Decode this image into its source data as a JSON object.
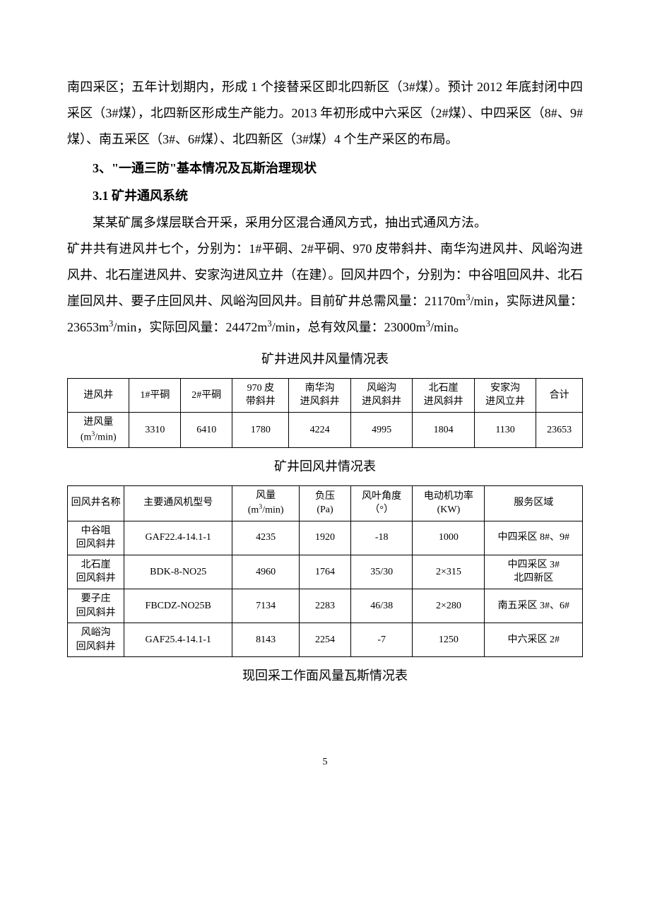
{
  "paragraphs": {
    "p1": "南四采区；五年计划期内，形成 1 个接替采区即北四新区（3#煤）。预计 2012 年底封闭中四采区（3#煤），北四新区形成生产能力。2013 年初形成中六采区（2#煤）、中四采区（8#、9#煤）、南五采区（3#、6#煤）、北四新区（3#煤）4 个生产采区的布局。",
    "h3": "3、\"一通三防\"基本情况及瓦斯治理现状",
    "h31": "3.1 矿井通风系统",
    "p2a": "某某矿属多煤层联合开采，采用分区混合通风方式，抽出式通风方法。",
    "p2b_pre": "矿井共有进风井七个，分别为：1#平硐、2#平硐、970 皮带斜井、南华沟进风井、风峪沟进风井、北石崖进风井、安家沟进风立井（在建）。回风井四个，分别为：中谷咀回风井、北石崖回风井、要子庄回风井、风峪沟回风井。目前矿井总需风量：21170m",
    "p2b_mid1": "/min，实际进风量：23653m",
    "p2b_mid2": "/min，实际回风量：24472m",
    "p2b_mid3": "/min，总有效风量：23000m",
    "p2b_end": "/min。"
  },
  "table1": {
    "caption": "矿井进风井风量情况表",
    "headers": [
      "进风井",
      "1#平硐",
      "2#平硐",
      "970 皮\n带斜井",
      "南华沟\n进风斜井",
      "风峪沟\n进风斜井",
      "北石崖\n进风斜井",
      "安家沟\n进风立井",
      "合计"
    ],
    "row_label_pre": "进风量\n(m",
    "row_label_post": "/min)",
    "values": [
      "3310",
      "6410",
      "1780",
      "4224",
      "4995",
      "1804",
      "1130",
      "23653"
    ]
  },
  "table2": {
    "caption": "矿井回风井情况表",
    "headers": {
      "c1": "回风井名称",
      "c2": "主要通风机型号",
      "c3_pre": "风量\n(m",
      "c3_post": "/min)",
      "c4": "负压\n(Pa)",
      "c5": "风叶角度\n（°）",
      "c6": "电动机功率\n(KW)",
      "c7": "服务区域"
    },
    "rows": [
      {
        "c1": "中谷咀\n回风斜井",
        "c2": "GAF22.4-14.1-1",
        "c3": "4235",
        "c4": "1920",
        "c5": "-18",
        "c6": "1000",
        "c7": "中四采区 8#、9#"
      },
      {
        "c1": "北石崖\n回风斜井",
        "c2": "BDK-8-NO25",
        "c3": "4960",
        "c4": "1764",
        "c5": "35/30",
        "c6": "2×315",
        "c7": "中四采区 3#\n北四新区"
      },
      {
        "c1": "要子庄\n回风斜井",
        "c2": "FBCDZ-NO25B",
        "c3": "7134",
        "c4": "2283",
        "c5": "46/38",
        "c6": "2×280",
        "c7": "南五采区 3#、6#"
      },
      {
        "c1": "风峪沟\n回风斜井",
        "c2": "GAF25.4-14.1-1",
        "c3": "8143",
        "c4": "2254",
        "c5": "-7",
        "c6": "1250",
        "c7": "中六采区 2#"
      }
    ]
  },
  "table3_caption": "现回采工作面风量瓦斯情况表",
  "page_number": "5"
}
